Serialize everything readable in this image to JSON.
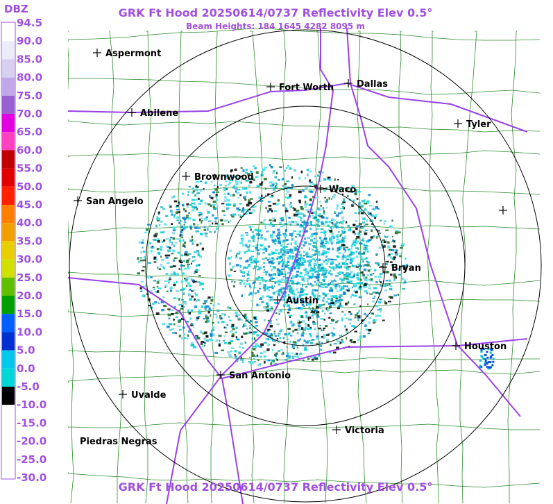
{
  "header": {
    "title": "GRK Ft Hood 20250614/0737 Reflectivity Elev 0.5°",
    "subtitle": "Beam Heights: 184 1645 4282 8095 m"
  },
  "footer": {
    "title": "GRK Ft Hood 20250614/0737 Reflectivity Elev 0.5°"
  },
  "colorbar": {
    "unit": "DBZ",
    "labels": [
      "94.5",
      "90.0",
      "85.0",
      "80.0",
      "75.0",
      "70.0",
      "65.0",
      "60.0",
      "55.0",
      "50.0",
      "45.0",
      "40.0",
      "35.0",
      "30.0",
      "25.0",
      "20.0",
      "15.0",
      "10.0",
      "5.0",
      "0.0",
      "-5.0",
      "-10.0",
      "-15.0",
      "-20.0",
      "-25.0",
      "-30.0"
    ]
  },
  "map": {
    "cities": [
      "Aspermont",
      "Fort Worth",
      "Dallas",
      "Abilene",
      "Tyler",
      "Brownwood",
      "Waco",
      "San Angelo",
      "Bryan",
      "Austin",
      "Houston",
      "San Antonio",
      "Uvalde",
      "Victoria",
      "Piedras Negras"
    ]
  }
}
